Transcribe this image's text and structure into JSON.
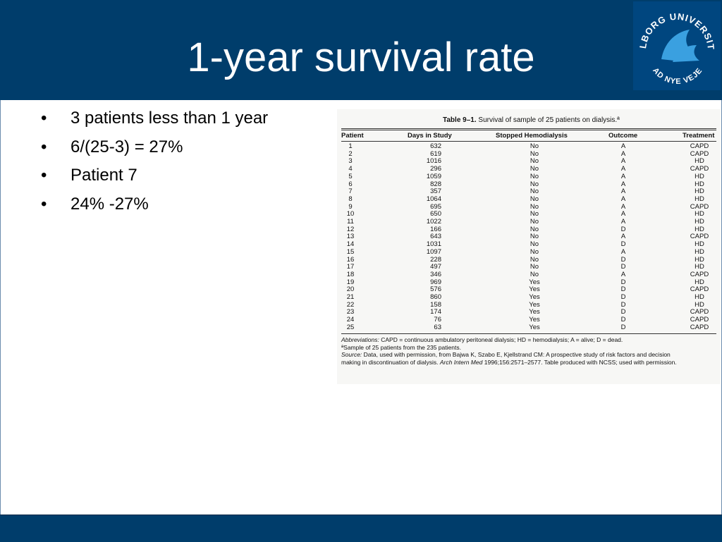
{
  "slide": {
    "title": "1-year survival rate",
    "logo_text": "AALBORG UNIVERSITET",
    "logo_subtext": "AD NYE VEJE",
    "bullets": [
      "3 patients less than 1 year",
      "6/(25-3) = 27%",
      "Patient 7",
      "24% -27%"
    ],
    "bullet_glyph": "•"
  },
  "table": {
    "caption_label": "Table 9–1.",
    "caption_text": "Survival of sample of 25 patients on dialysis.ª",
    "columns": [
      "Patient",
      "Days in Study",
      "Stopped Hemodialysis",
      "Outcome",
      "Treatment"
    ],
    "rows": [
      [
        "1",
        "632",
        "No",
        "A",
        "CAPD"
      ],
      [
        "2",
        "619",
        "No",
        "A",
        "CAPD"
      ],
      [
        "3",
        "1016",
        "No",
        "A",
        "HD"
      ],
      [
        "4",
        "296",
        "No",
        "A",
        "CAPD"
      ],
      [
        "5",
        "1059",
        "No",
        "A",
        "HD"
      ],
      [
        "6",
        "828",
        "No",
        "A",
        "HD"
      ],
      [
        "7",
        "357",
        "No",
        "A",
        "HD"
      ],
      [
        "8",
        "1064",
        "No",
        "A",
        "HD"
      ],
      [
        "9",
        "695",
        "No",
        "A",
        "CAPD"
      ],
      [
        "10",
        "650",
        "No",
        "A",
        "HD"
      ],
      [
        "11",
        "1022",
        "No",
        "A",
        "HD"
      ],
      [
        "12",
        "166",
        "No",
        "D",
        "HD"
      ],
      [
        "13",
        "643",
        "No",
        "A",
        "CAPD"
      ],
      [
        "14",
        "1031",
        "No",
        "D",
        "HD"
      ],
      [
        "15",
        "1097",
        "No",
        "A",
        "HD"
      ],
      [
        "16",
        "228",
        "No",
        "D",
        "HD"
      ],
      [
        "17",
        "497",
        "No",
        "D",
        "HD"
      ],
      [
        "18",
        "346",
        "No",
        "A",
        "CAPD"
      ],
      [
        "19",
        "969",
        "Yes",
        "D",
        "HD"
      ],
      [
        "20",
        "576",
        "Yes",
        "D",
        "CAPD"
      ],
      [
        "21",
        "860",
        "Yes",
        "D",
        "HD"
      ],
      [
        "22",
        "158",
        "Yes",
        "D",
        "HD"
      ],
      [
        "23",
        "174",
        "Yes",
        "D",
        "CAPD"
      ],
      [
        "24",
        "76",
        "Yes",
        "D",
        "CAPD"
      ],
      [
        "25",
        "63",
        "Yes",
        "D",
        "CAPD"
      ]
    ],
    "abbrev_label": "Abbreviations:",
    "abbrev_text": "CAPD = continuous ambulatory peritoneal dialysis; HD = hemodialysis; A = alive; D = dead.",
    "footnote": "ªSample of 25 patients from the 235 patients.",
    "source_label": "Source:",
    "source_text_1": "Data, used with permission, from Bajwa K, Szabo E, Kjellstrand CM: A prospective study of risk factors and decision",
    "source_text_2a": "making in discontinuation of dialysis.",
    "source_journal": "Arch Intern Med",
    "source_text_2b": "1996;156:2571–2577. Table produced with NCSS; used with permission."
  },
  "colors": {
    "header_bg": "#003d6b",
    "footer_bg": "#003d6b",
    "logo_bg": "#00467f",
    "logo_accent": "#3aa0e0",
    "title_text": "#ffffff"
  }
}
